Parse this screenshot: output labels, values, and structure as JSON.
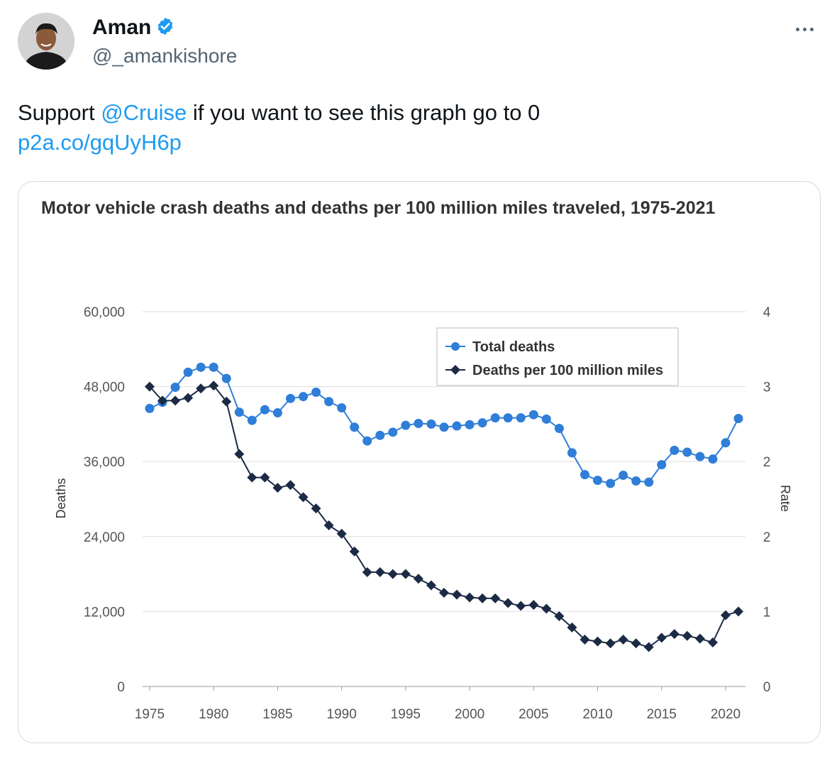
{
  "tweet": {
    "author_name": "Aman",
    "author_handle": "@_amankishore",
    "text_before": "Support ",
    "mention": "@Cruise",
    "text_after": " if you want to see this graph go to 0",
    "link": "p2a.co/gqUyH6p",
    "more_icon": "more-horizontal-icon",
    "verified_icon": "verified-badge-icon"
  },
  "colors": {
    "accent": "#1d9bf0",
    "total_series": "#2f7ed8",
    "rate_series": "#1c2b45"
  },
  "chart_data": {
    "type": "line",
    "title": "Motor vehicle crash deaths and deaths per 100 million miles traveled, 1975-2021",
    "ylabel": "Deaths",
    "y2label": "Rate",
    "ylim": [
      0,
      60000
    ],
    "y2lim": [
      0,
      4
    ],
    "yticks": [
      "60,000",
      "48,000",
      "36,000",
      "24,000",
      "12,000",
      "0"
    ],
    "y2ticks": [
      "4",
      "3",
      "2",
      "2",
      "1",
      "0"
    ],
    "xticks": [
      "1975",
      "1980",
      "1985",
      "1990",
      "1995",
      "2000",
      "2005",
      "2010",
      "2015",
      "2020"
    ],
    "grid": true,
    "legend_position": "top-right",
    "x": [
      1975,
      1976,
      1977,
      1978,
      1979,
      1980,
      1981,
      1982,
      1983,
      1984,
      1985,
      1986,
      1987,
      1988,
      1989,
      1990,
      1991,
      1992,
      1993,
      1994,
      1995,
      1996,
      1997,
      1998,
      1999,
      2000,
      2001,
      2002,
      2003,
      2004,
      2005,
      2006,
      2007,
      2008,
      2009,
      2010,
      2011,
      2012,
      2013,
      2014,
      2015,
      2016,
      2017,
      2018,
      2019,
      2020,
      2021
    ],
    "series": [
      {
        "name": "Total deaths",
        "axis": "left",
        "marker": "circle",
        "values": [
          44500,
          45500,
          47900,
          50300,
          51100,
          51100,
          49300,
          43900,
          42600,
          44300,
          43800,
          46100,
          46400,
          47100,
          45600,
          44600,
          41500,
          39300,
          40200,
          40700,
          41800,
          42100,
          42000,
          41500,
          41700,
          41900,
          42200,
          43000,
          43000,
          43000,
          43500,
          42800,
          41300,
          37400,
          33900,
          33000,
          32500,
          33800,
          32900,
          32700,
          35500,
          37800,
          37500,
          36800,
          36400,
          39000,
          42900
        ]
      },
      {
        "name": "Deaths per 100 million miles",
        "axis": "right",
        "marker": "diamond",
        "values": [
          3.2,
          3.05,
          3.05,
          3.08,
          3.18,
          3.21,
          3.04,
          2.48,
          2.23,
          2.23,
          2.12,
          2.15,
          2.02,
          1.9,
          1.72,
          1.63,
          1.44,
          1.22,
          1.22,
          1.2,
          1.2,
          1.15,
          1.08,
          1.0,
          0.98,
          0.95,
          0.94,
          0.94,
          0.89,
          0.86,
          0.87,
          0.83,
          0.75,
          0.63,
          0.5,
          0.48,
          0.46,
          0.5,
          0.46,
          0.42,
          0.52,
          0.56,
          0.54,
          0.51,
          0.47,
          0.76,
          0.8
        ]
      }
    ]
  }
}
